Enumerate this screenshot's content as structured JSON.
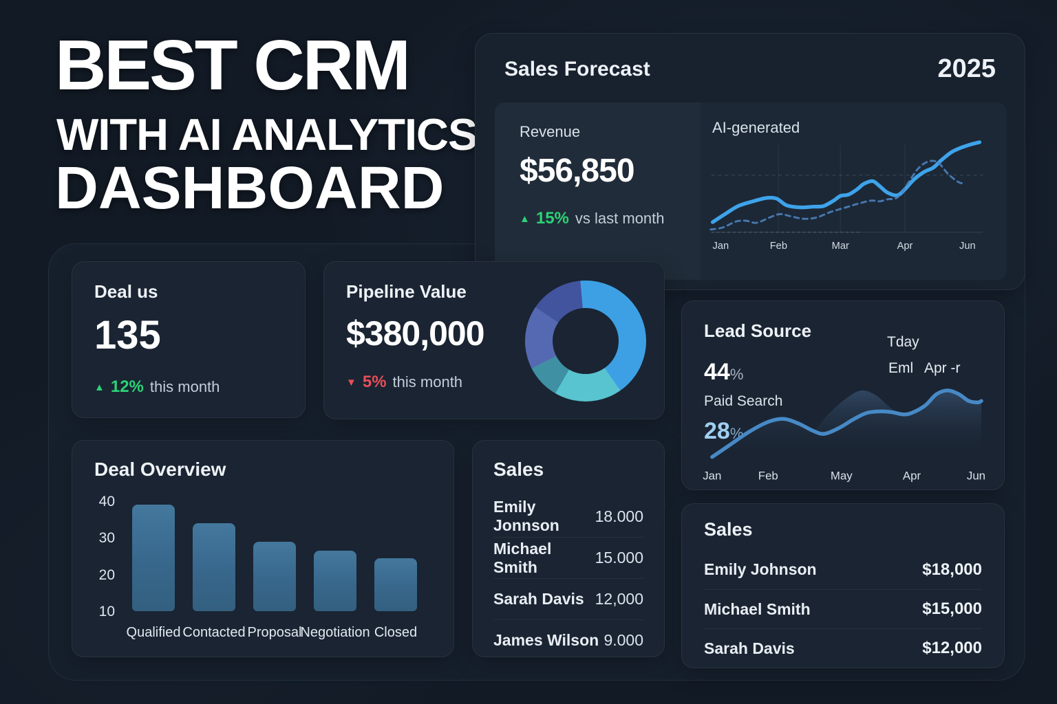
{
  "colors": {
    "background": "#121a25",
    "panel": "#16202d",
    "card": "#1a2432",
    "accent_blue": "#3ea3ea",
    "forecast_dashed_blue": "#4d85c2",
    "bar_blue": "#3a6b92",
    "lead_line_blue": "#4789c6",
    "green_up": "#2bd376",
    "red_down": "#e84f58",
    "light_blue_pct": "#9fcef1",
    "donut": [
      "#3da0e4",
      "#58c4cf",
      "#3f90a3",
      "#5569b3",
      "#42549e"
    ]
  },
  "headline": {
    "line1": "BEST CRM",
    "line2": "WITH AI ANALYTICS",
    "line3": "DASHBOARD"
  },
  "sales_forecast": {
    "title": "Sales Forecast",
    "year": "2025",
    "revenue_label": "Revenue",
    "revenue_value": "$56,850",
    "delta": {
      "direction": "up",
      "triangle": "▲",
      "pct": "15%",
      "suffix": "vs last month"
    },
    "chart_label": "AI-generated",
    "chart_data": {
      "type": "line",
      "x_labels": [
        "Jan",
        "Feb",
        "Mar",
        "Apr",
        "Jun"
      ],
      "x_positions": [
        22,
        108,
        200,
        296,
        389
      ],
      "series": [
        {
          "name": "actual",
          "style": "solid",
          "points": [
            [
              10,
              125
            ],
            [
              30,
              112
            ],
            [
              48,
              101
            ],
            [
              70,
              94
            ],
            [
              90,
              89
            ],
            [
              105,
              90
            ],
            [
              120,
              100
            ],
            [
              140,
              103
            ],
            [
              160,
              102
            ],
            [
              175,
              101
            ],
            [
              190,
              93
            ],
            [
              200,
              86
            ],
            [
              212,
              84
            ],
            [
              225,
              76
            ],
            [
              235,
              68
            ],
            [
              248,
              64
            ],
            [
              258,
              71
            ],
            [
              270,
              81
            ],
            [
              285,
              85
            ],
            [
              297,
              75
            ],
            [
              310,
              61
            ],
            [
              325,
              50
            ],
            [
              338,
              44
            ],
            [
              350,
              33
            ],
            [
              365,
              21
            ],
            [
              380,
              14
            ],
            [
              395,
              9
            ],
            [
              407,
              6
            ]
          ]
        },
        {
          "name": "ai_forecast",
          "style": "dashed",
          "points": [
            [
              7,
              136
            ],
            [
              25,
              133
            ],
            [
              45,
              124
            ],
            [
              60,
              123
            ],
            [
              75,
              126
            ],
            [
              95,
              118
            ],
            [
              110,
              113
            ],
            [
              125,
              116
            ],
            [
              145,
              120
            ],
            [
              165,
              118
            ],
            [
              185,
              110
            ],
            [
              205,
              104
            ],
            [
              225,
              98
            ],
            [
              245,
              93
            ],
            [
              258,
              94
            ],
            [
              270,
              91
            ],
            [
              285,
              88
            ],
            [
              300,
              68
            ],
            [
              315,
              46
            ],
            [
              330,
              35
            ],
            [
              345,
              36
            ],
            [
              360,
              53
            ],
            [
              375,
              65
            ],
            [
              385,
              68
            ]
          ]
        }
      ]
    }
  },
  "deal_status": {
    "title": "Deal us",
    "value": "135",
    "delta": {
      "direction": "up",
      "triangle": "▲",
      "pct": "12%",
      "suffix": "this month"
    }
  },
  "pipeline": {
    "title": "Pipeline Value",
    "value": "$380,000",
    "delta": {
      "direction": "down",
      "triangle": "▼",
      "pct": "5%",
      "suffix": "this month"
    },
    "chart_data": {
      "type": "donut",
      "rotation_deg": -5,
      "segments": [
        {
          "color": "#3da0e4",
          "from_deg": 0,
          "to_deg": 150
        },
        {
          "color": "#58c4cf",
          "from_deg": 150,
          "to_deg": 215
        },
        {
          "color": "#3f90a3",
          "from_deg": 215,
          "to_deg": 248
        },
        {
          "color": "#5569b3",
          "from_deg": 248,
          "to_deg": 309
        },
        {
          "color": "#42549e",
          "from_deg": 309,
          "to_deg": 360
        }
      ]
    }
  },
  "lead_source": {
    "title": "Lead Source",
    "metric1": {
      "value": "44",
      "unit": "%",
      "label": "Paid Search"
    },
    "metric2": {
      "value": "28",
      "unit": "%"
    },
    "annotations": {
      "a1": "Tday",
      "a2": "Eml",
      "a3": "Apr -r"
    },
    "chart_data": {
      "type": "area",
      "x_labels": [
        "Jan",
        "Feb",
        "May",
        "Apr",
        "Jun"
      ],
      "x_positions": [
        25,
        100,
        198,
        292,
        378
      ],
      "baseline_y": 105,
      "line_points": [
        [
          25,
          100
        ],
        [
          50,
          83
        ],
        [
          75,
          66
        ],
        [
          100,
          53
        ],
        [
          120,
          49
        ],
        [
          140,
          55
        ],
        [
          160,
          65
        ],
        [
          175,
          69
        ],
        [
          195,
          61
        ],
        [
          215,
          49
        ],
        [
          232,
          41
        ],
        [
          250,
          39
        ],
        [
          265,
          40
        ],
        [
          280,
          43
        ],
        [
          292,
          41
        ],
        [
          310,
          31
        ],
        [
          325,
          16
        ],
        [
          340,
          11
        ],
        [
          355,
          16
        ],
        [
          368,
          25
        ],
        [
          380,
          27
        ],
        [
          385,
          25
        ]
      ],
      "area_points": [
        [
          25,
          100
        ],
        [
          50,
          83
        ],
        [
          75,
          66
        ],
        [
          100,
          53
        ],
        [
          120,
          49
        ],
        [
          140,
          55
        ],
        [
          160,
          65
        ],
        [
          180,
          43
        ],
        [
          205,
          21
        ],
        [
          225,
          11
        ],
        [
          245,
          18
        ],
        [
          262,
          33
        ],
        [
          278,
          43
        ],
        [
          292,
          41
        ],
        [
          310,
          31
        ],
        [
          325,
          16
        ],
        [
          340,
          11
        ],
        [
          355,
          16
        ],
        [
          368,
          25
        ],
        [
          385,
          25
        ]
      ]
    }
  },
  "deal_overview": {
    "title": "Deal Overview",
    "chart_data": {
      "type": "bar",
      "categories": [
        "Qualified",
        "Contacted",
        "Proposal",
        "Negotiation",
        "Closed"
      ],
      "values": [
        39,
        34,
        29,
        26.5,
        24.5
      ],
      "yticks": [
        10,
        20,
        30,
        40
      ],
      "ylim": [
        10,
        40
      ],
      "grid": false
    }
  },
  "sales_list": {
    "title": "Sales",
    "rows": [
      {
        "name": "Emily Jonnson",
        "value": "18.000"
      },
      {
        "name": "Michael Smith",
        "value": "15.000"
      },
      {
        "name": "Sarah Davis",
        "value": "12,000"
      },
      {
        "name": "James Wilson",
        "value": "9.000"
      }
    ]
  },
  "sales_table": {
    "title": "Sales",
    "rows": [
      {
        "name": "Emily Johnson",
        "value": "$18,000"
      },
      {
        "name": "Michael Smith",
        "value": "$15,000"
      },
      {
        "name": "Sarah Davis",
        "value": "$12,000"
      }
    ]
  }
}
